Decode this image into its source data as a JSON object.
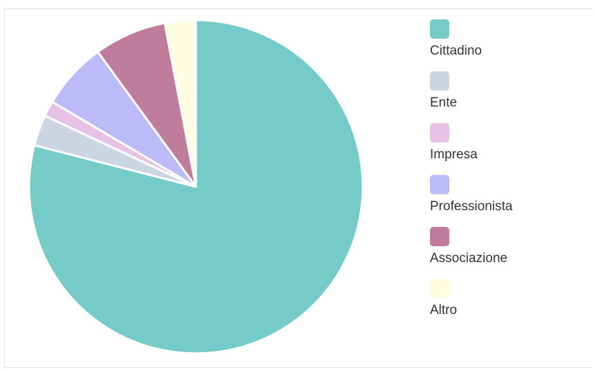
{
  "chart_data": {
    "type": "pie",
    "title": "",
    "legend_position": "right",
    "categories": [
      "Cittadino",
      "Ente",
      "Impresa",
      "Professionista",
      "Associazione",
      "Altro"
    ],
    "values": [
      79,
      3,
      1.5,
      6.5,
      7,
      3
    ],
    "colors": [
      "#75cbc8",
      "#ccd6e3",
      "#e8c1e6",
      "#bcbaf8",
      "#bf7d9b",
      "#fcfde1"
    ],
    "start_angle_deg": 0,
    "direction": "clockwise"
  }
}
